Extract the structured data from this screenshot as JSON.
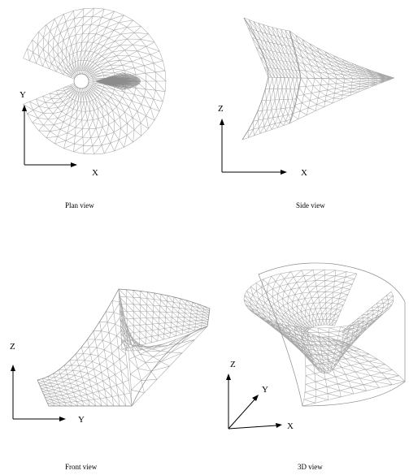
{
  "panels": [
    {
      "id": "plan",
      "caption": "Plan view",
      "axes": [
        "Y",
        "X"
      ]
    },
    {
      "id": "side",
      "caption": "Side view",
      "axes": [
        "Z",
        "X"
      ]
    },
    {
      "id": "front",
      "caption": "Front view",
      "axes": [
        "Z",
        "Y"
      ]
    },
    {
      "id": "three",
      "caption": "3D view",
      "axes": [
        "Z",
        "Y",
        "X"
      ]
    }
  ],
  "colors": {
    "mesh": "#a8a8a8",
    "axis": "#000000"
  }
}
